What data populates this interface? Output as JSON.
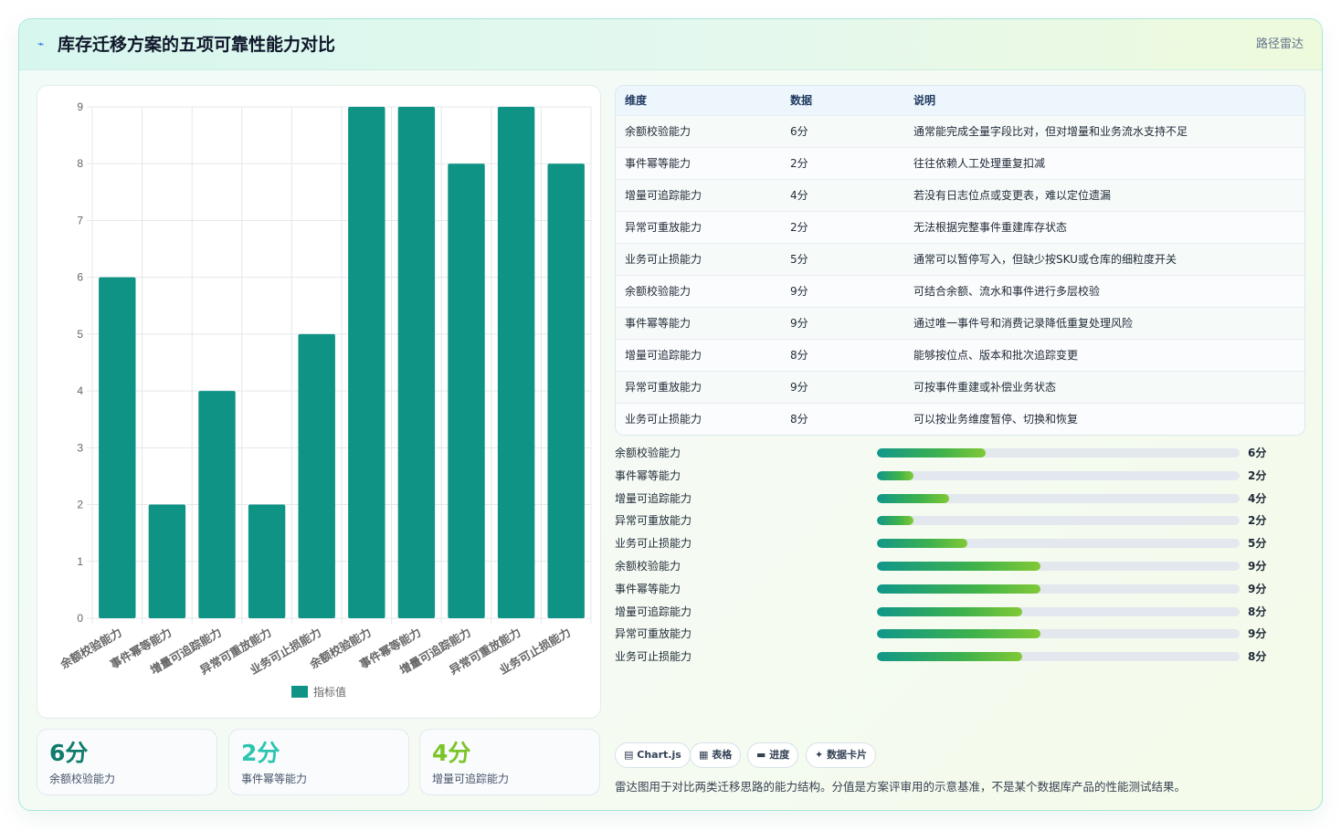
{
  "header": {
    "icon": "radar-icon",
    "title": "库存迁移方案的五项可靠性能力对比",
    "right_link": "路径雷达"
  },
  "colors": {
    "bar": "#0e9384",
    "accent_1": "#0f7c6c",
    "accent_2": "#2cc5b0",
    "accent_3": "#7ac528"
  },
  "chart_data": {
    "type": "bar",
    "categories": [
      "余额校验能力",
      "事件幂等能力",
      "增量可追踪能力",
      "异常可重放能力",
      "业务可止损能力",
      "余额校验能力",
      "事件幂等能力",
      "增量可追踪能力",
      "异常可重放能力",
      "业务可止损能力"
    ],
    "series": [
      {
        "name": "指标值",
        "values": [
          6,
          2,
          4,
          2,
          5,
          9,
          9,
          8,
          9,
          8
        ]
      }
    ],
    "ylim": [
      0,
      9
    ],
    "yticks": [
      0,
      1,
      2,
      3,
      4,
      5,
      6,
      7,
      8,
      9
    ],
    "grid": true,
    "legend": "bottom"
  },
  "table": {
    "headers": [
      "维度",
      "数据",
      "说明"
    ],
    "rows": [
      [
        "余额校验能力",
        "6分",
        "通常能完成全量字段比对，但对增量和业务流水支持不足"
      ],
      [
        "事件幂等能力",
        "2分",
        "往往依赖人工处理重复扣减"
      ],
      [
        "增量可追踪能力",
        "4分",
        "若没有日志位点或变更表，难以定位遗漏"
      ],
      [
        "异常可重放能力",
        "2分",
        "无法根据完整事件重建库存状态"
      ],
      [
        "业务可止损能力",
        "5分",
        "通常可以暂停写入，但缺少按SKU或仓库的细粒度开关"
      ],
      [
        "余额校验能力",
        "9分",
        "可结合余额、流水和事件进行多层校验"
      ],
      [
        "事件幂等能力",
        "9分",
        "通过唯一事件号和消费记录降低重复处理风险"
      ],
      [
        "增量可追踪能力",
        "8分",
        "能够按位点、版本和批次追踪变更"
      ],
      [
        "异常可重放能力",
        "9分",
        "可按事件重建或补偿业务状态"
      ],
      [
        "业务可止损能力",
        "8分",
        "可以按业务维度暂停、切换和恢复"
      ]
    ]
  },
  "progress": {
    "max": 20,
    "items": [
      {
        "label": "余额校验能力",
        "value": 6,
        "text": "6分"
      },
      {
        "label": "事件幂等能力",
        "value": 2,
        "text": "2分"
      },
      {
        "label": "增量可追踪能力",
        "value": 4,
        "text": "4分"
      },
      {
        "label": "异常可重放能力",
        "value": 2,
        "text": "2分"
      },
      {
        "label": "业务可止损能力",
        "value": 5,
        "text": "5分"
      },
      {
        "label": "余额校验能力",
        "value": 9,
        "text": "9分"
      },
      {
        "label": "事件幂等能力",
        "value": 9,
        "text": "9分"
      },
      {
        "label": "增量可追踪能力",
        "value": 8,
        "text": "8分"
      },
      {
        "label": "异常可重放能力",
        "value": 9,
        "text": "9分"
      },
      {
        "label": "业务可止损能力",
        "value": 8,
        "text": "8分"
      }
    ]
  },
  "stats": [
    {
      "value": "6分",
      "label": "余额校验能力"
    },
    {
      "value": "2分",
      "label": "事件幂等能力"
    },
    {
      "value": "4分",
      "label": "增量可追踪能力"
    }
  ],
  "chips": [
    {
      "icon": "chart-icon",
      "glyph": "▤",
      "label": "Chart.js"
    },
    {
      "icon": "table-icon",
      "glyph": "▦",
      "label": "表格"
    },
    {
      "icon": "progress-icon",
      "glyph": "▬",
      "label": "进度"
    },
    {
      "icon": "card-icon",
      "glyph": "✦",
      "label": "数据卡片"
    }
  ],
  "footnote": "雷达图用于对比两类迁移思路的能力结构。分值是方案评审用的示意基准，不是某个数据库产品的性能测试结果。"
}
